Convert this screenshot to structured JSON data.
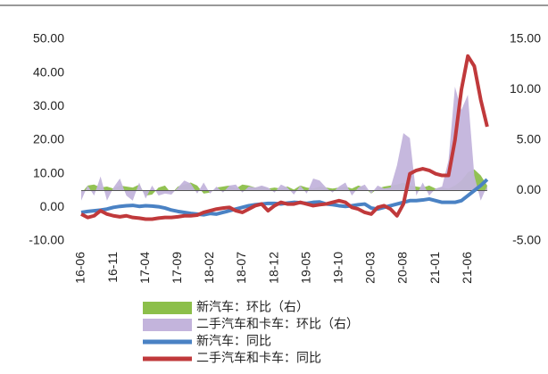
{
  "chart_data": {
    "type": "combo",
    "categories": [
      "16-06",
      null,
      null,
      null,
      null,
      "16-11",
      null,
      null,
      null,
      null,
      "17-04",
      null,
      null,
      null,
      null,
      "17-09",
      null,
      null,
      null,
      null,
      "18-02",
      null,
      null,
      null,
      null,
      "18-07",
      null,
      null,
      null,
      null,
      "18-12",
      null,
      null,
      null,
      null,
      "19-05",
      null,
      null,
      null,
      null,
      "19-10",
      null,
      null,
      null,
      null,
      "20-03",
      null,
      null,
      null,
      null,
      "20-08",
      null,
      null,
      null,
      null,
      "21-01",
      null,
      null,
      null,
      null,
      "21-06",
      null,
      null,
      null
    ],
    "ylim": [
      -10,
      50
    ],
    "yticks": [
      {
        "value": -10,
        "label": "-10.00"
      },
      {
        "value": 0,
        "label": "0.00"
      },
      {
        "value": 10,
        "label": "10.00"
      },
      {
        "value": 20,
        "label": "20.00"
      },
      {
        "value": 30,
        "label": "30.00"
      },
      {
        "value": 40,
        "label": "40.00"
      },
      {
        "value": 50,
        "label": "50.00"
      }
    ],
    "y2lim": [
      -5,
      15
    ],
    "y2ticks": [
      {
        "value": -5,
        "label": "-5.00"
      },
      {
        "value": 0,
        "label": "0.00"
      },
      {
        "value": 5,
        "label": "5.00"
      },
      {
        "value": 10,
        "label": "10.00"
      },
      {
        "value": 15,
        "label": "15.00"
      }
    ],
    "series": [
      {
        "name": "新汽车：环比（右）",
        "kind": "area",
        "axis": "y2",
        "color": "#8cbf4a",
        "values": [
          -0.3,
          0.5,
          0.6,
          0.3,
          0.4,
          0.2,
          0.5,
          0.4,
          0.3,
          0.6,
          -0.5,
          -0.4,
          0.3,
          0.5,
          -0.3,
          0.4,
          0.6,
          0.8,
          0.5,
          -0.3,
          -0.2,
          0.3,
          0.4,
          0.5,
          0.2,
          0.6,
          0.5,
          0.3,
          0.4,
          0.2,
          0.3,
          0.2,
          0.4,
          0.1,
          0.5,
          0.3,
          0.2,
          0.4,
          0.3,
          0.2,
          0.3,
          0.4,
          0.2,
          0.5,
          0.3,
          -0.3,
          0.2,
          0.4,
          0.5,
          0.6,
          0.8,
          0.5,
          0.4,
          0.3,
          0.5,
          0.2,
          0.3,
          0.2,
          0.5,
          1,
          1.8,
          2.1,
          1.5,
          0.5
        ]
      },
      {
        "name": "二手汽车和卡车：环比（右）",
        "kind": "area",
        "axis": "y2",
        "color": "#c3b4dc",
        "values": [
          -1,
          0.5,
          -0.5,
          1.4,
          -1,
          0.3,
          1.2,
          -0.5,
          -1,
          0.8,
          -0.8,
          0.5,
          -0.5,
          -0.3,
          -0.4,
          0.3,
          1,
          0.7,
          -0.3,
          0.8,
          -0.3,
          0.4,
          -0.2,
          0.5,
          0.6,
          -0.2,
          0.4,
          0.3,
          0.5,
          0.3,
          -0.2,
          0.6,
          0.3,
          -0.4,
          0.5,
          -0.3,
          1.2,
          1.0,
          0.3,
          -0.2,
          0.4,
          0.8,
          -0.5,
          0.3,
          0.6,
          -0.3,
          0.5,
          0.2,
          0.3,
          2.5,
          5.7,
          5.2,
          -0.5,
          0.8,
          -0.5,
          0.2,
          0.4,
          3,
          10.3,
          8,
          9.5,
          1.5,
          -1,
          0.5
        ]
      },
      {
        "name": "新汽车：同比",
        "kind": "line",
        "color": "#4a82c4",
        "values": [
          -1.5,
          -1.2,
          -1,
          -0.8,
          -0.5,
          0,
          0.3,
          0.5,
          0.6,
          0.3,
          0.5,
          0.4,
          0.2,
          -0.2,
          -0.8,
          -1.2,
          -1.5,
          -1.8,
          -2,
          -2.2,
          -1.8,
          -2,
          -1.5,
          -1,
          -0.5,
          0,
          0.5,
          0.8,
          1,
          1.2,
          1.2,
          1,
          1.3,
          1.5,
          1.4,
          1.2,
          1.5,
          1.6,
          1,
          0.8,
          0.5,
          0.3,
          0.5,
          0.8,
          1,
          -0.2,
          -0.5,
          0,
          0.5,
          1,
          1.5,
          2,
          2,
          2.2,
          2.5,
          2,
          1.5,
          1.5,
          1.5,
          2,
          3.5,
          5,
          6.5,
          8.3
        ]
      },
      {
        "name": "二手汽车和卡车：同比",
        "kind": "line",
        "color": "#c0393b",
        "values": [
          -2,
          -3,
          -2.5,
          -1,
          -2,
          -2.5,
          -2.8,
          -2.5,
          -3,
          -3.2,
          -3.5,
          -3.5,
          -3.2,
          -3,
          -3,
          -2.8,
          -2.5,
          -2.5,
          -2.3,
          -1.5,
          -1,
          -0.5,
          -0.2,
          0,
          -1,
          -1.5,
          -0.5,
          0.5,
          1,
          -1,
          0.5,
          1.5,
          1,
          1,
          1.5,
          1,
          0.5,
          0.8,
          1,
          1.5,
          2,
          1.5,
          0,
          -0.5,
          -1.5,
          -2,
          0,
          0.5,
          -0.5,
          -2.5,
          1,
          10,
          11,
          11.5,
          11,
          10,
          9.5,
          9.5,
          20,
          35,
          45,
          42,
          32,
          24
        ]
      }
    ]
  }
}
